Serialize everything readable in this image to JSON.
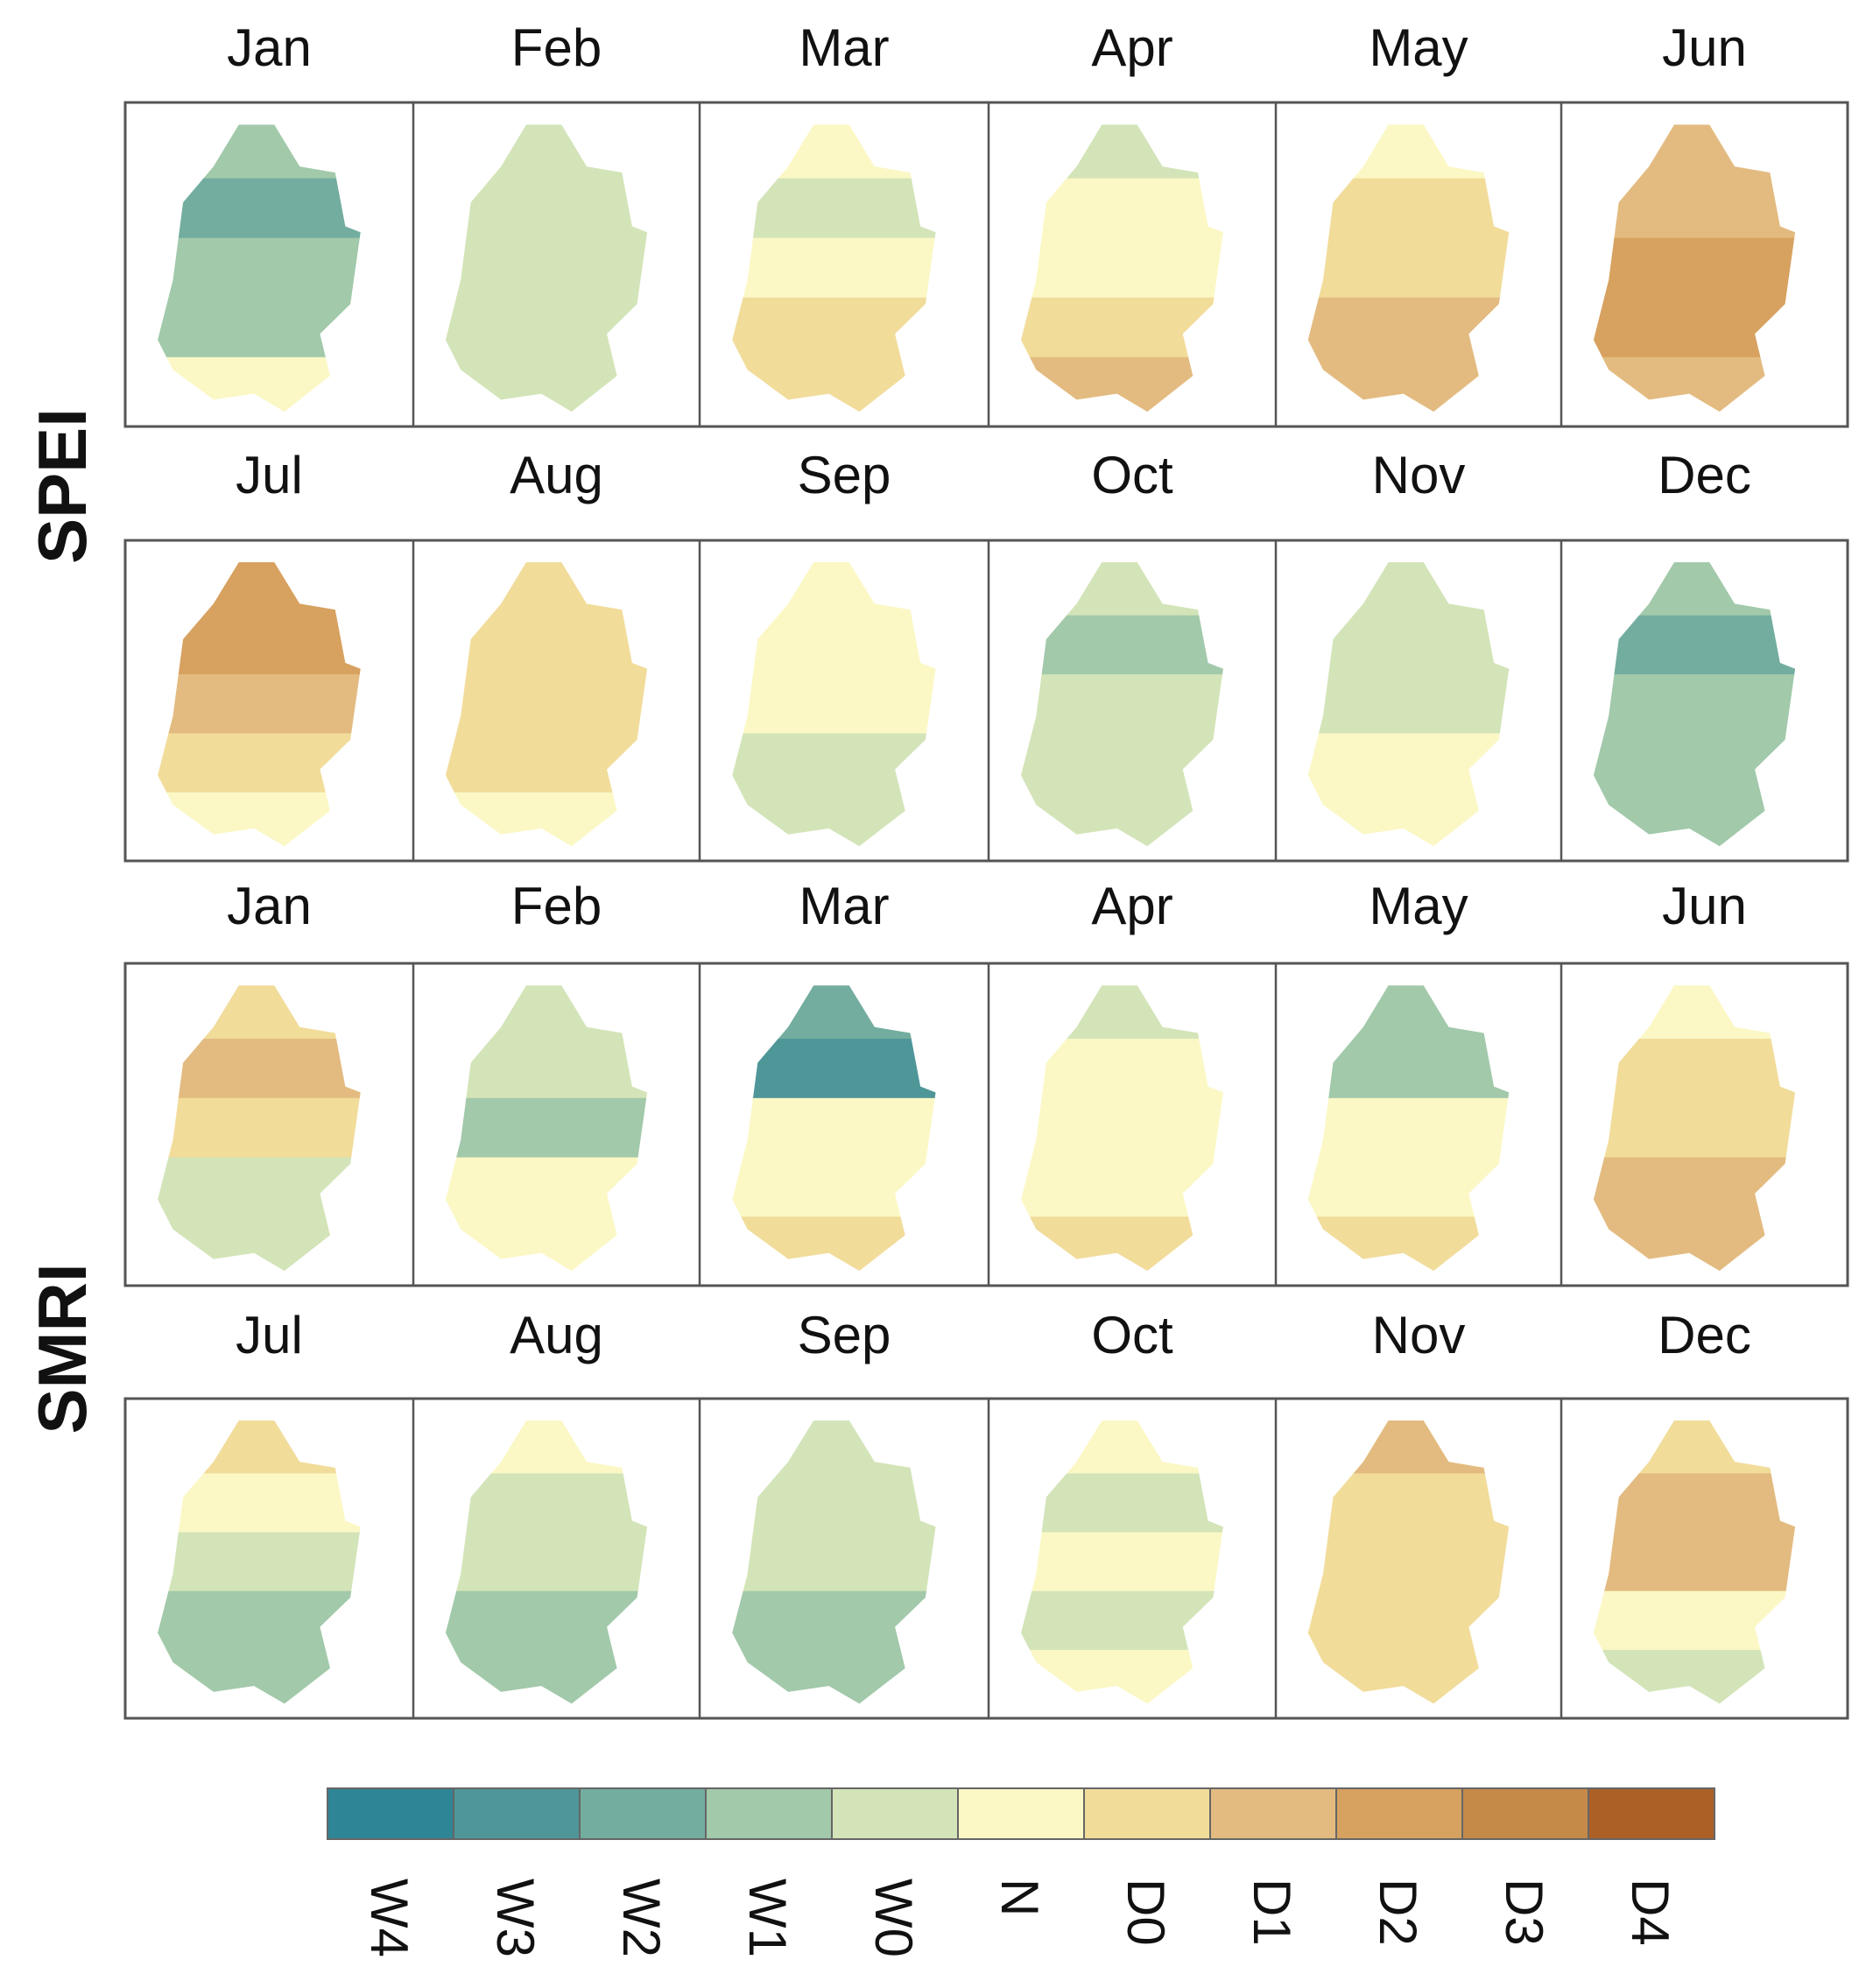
{
  "figure": {
    "panels": [
      {
        "index_label": "SPEI",
        "row_a_months": [
          "Jan",
          "Feb",
          "Mar",
          "Apr",
          "May",
          "Jun"
        ],
        "row_b_months": [
          "Jul",
          "Aug",
          "Sep",
          "Oct",
          "Nov",
          "Dec"
        ]
      },
      {
        "index_label": "SMRI",
        "row_a_months": [
          "Jan",
          "Feb",
          "Mar",
          "Apr",
          "May",
          "Jun"
        ],
        "row_b_months": [
          "Jul",
          "Aug",
          "Sep",
          "Oct",
          "Nov",
          "Dec"
        ]
      }
    ],
    "legend": {
      "classes": [
        "W4",
        "W3",
        "W2",
        "W1",
        "W0",
        "N",
        "D0",
        "D1",
        "D2",
        "D3",
        "D4"
      ],
      "colors": [
        "#2e8596",
        "#4f9699",
        "#73ad9f",
        "#a2c9aa",
        "#d3e4b8",
        "#fbf8c6",
        "#f1dc9a",
        "#e3bb80",
        "#d7a15f",
        "#c58a48",
        "#ad6026"
      ]
    }
  },
  "map_data": {
    "SPEI": {
      "Jan": [
        "W1",
        "W2",
        "W1",
        "W1",
        "N"
      ],
      "Feb": [
        "W0",
        "W0",
        "W0",
        "W0",
        "W0"
      ],
      "Mar": [
        "N",
        "W0",
        "N",
        "D0",
        "D0"
      ],
      "Apr": [
        "W0",
        "N",
        "N",
        "D0",
        "D1"
      ],
      "May": [
        "N",
        "D0",
        "D0",
        "D1",
        "D1"
      ],
      "Jun": [
        "D1",
        "D1",
        "D2",
        "D2",
        "D1"
      ],
      "Jul": [
        "D2",
        "D2",
        "D1",
        "D0",
        "N"
      ],
      "Aug": [
        "D0",
        "D0",
        "D0",
        "D0",
        "N"
      ],
      "Sep": [
        "N",
        "N",
        "N",
        "W0",
        "W0"
      ],
      "Oct": [
        "W0",
        "W1",
        "W0",
        "W0",
        "W0"
      ],
      "Nov": [
        "W0",
        "W0",
        "W0",
        "N",
        "N"
      ],
      "Dec": [
        "W1",
        "W2",
        "W1",
        "W1",
        "W1"
      ]
    },
    "SMRI": {
      "Jan": [
        "D0",
        "D1",
        "D0",
        "W0",
        "W0"
      ],
      "Feb": [
        "W0",
        "W0",
        "W1",
        "N",
        "N"
      ],
      "Mar": [
        "W2",
        "W3",
        "N",
        "N",
        "D0"
      ],
      "Apr": [
        "W0",
        "N",
        "N",
        "N",
        "D0"
      ],
      "May": [
        "W1",
        "W1",
        "N",
        "N",
        "D0"
      ],
      "Jun": [
        "N",
        "D0",
        "D0",
        "D1",
        "D1"
      ],
      "Jul": [
        "D0",
        "N",
        "W0",
        "W1",
        "W1"
      ],
      "Aug": [
        "N",
        "W0",
        "W0",
        "W1",
        "W1"
      ],
      "Sep": [
        "W0",
        "W0",
        "W0",
        "W1",
        "W1"
      ],
      "Oct": [
        "N",
        "W0",
        "N",
        "W0",
        "N"
      ],
      "Nov": [
        "D1",
        "D0",
        "D0",
        "D0",
        "D0"
      ],
      "Dec": [
        "D0",
        "D1",
        "D1",
        "N",
        "W0"
      ]
    }
  }
}
